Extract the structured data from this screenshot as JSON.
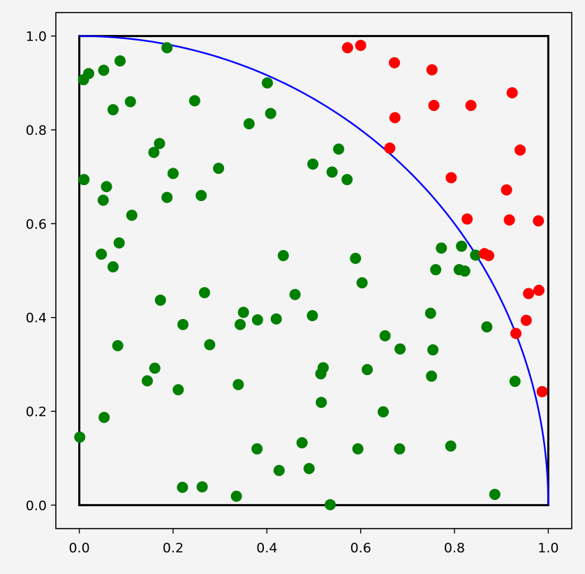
{
  "chart_data": {
    "type": "scatter",
    "title": "",
    "xlabel": "",
    "ylabel": "",
    "xlim": [
      -0.05,
      1.05
    ],
    "ylim": [
      -0.05,
      1.05
    ],
    "grid": false,
    "x_ticks": [
      "0.0",
      "0.2",
      "0.4",
      "0.6",
      "0.8",
      "1.0"
    ],
    "y_ticks": [
      "0.0",
      "0.2",
      "0.4",
      "0.6",
      "0.8",
      "1.0"
    ],
    "colors": {
      "inside": "#008000",
      "outside": "#ff0000",
      "arc": "#0000ff",
      "square": "#000000",
      "background": "#f4f4f4"
    },
    "reference_square": [
      [
        0,
        0
      ],
      [
        1,
        0
      ],
      [
        1,
        1
      ],
      [
        0,
        1
      ]
    ],
    "reference_arc": {
      "center": [
        0,
        0
      ],
      "radius": 1
    },
    "series": [
      {
        "points": [
          [
            0.187,
            0.975
          ],
          [
            0.087,
            0.947
          ],
          [
            0.02,
            0.92
          ],
          [
            0.052,
            0.927
          ],
          [
            0.009,
            0.907
          ],
          [
            0.109,
            0.86
          ],
          [
            0.072,
            0.843
          ],
          [
            0.246,
            0.862
          ],
          [
            0.401,
            0.9
          ],
          [
            0.408,
            0.835
          ],
          [
            0.362,
            0.813
          ],
          [
            0.171,
            0.771
          ],
          [
            0.159,
            0.752
          ],
          [
            0.2,
            0.707
          ],
          [
            0.297,
            0.718
          ],
          [
            0.498,
            0.727
          ],
          [
            0.553,
            0.759
          ],
          [
            0.539,
            0.71
          ],
          [
            0.571,
            0.694
          ],
          [
            0.01,
            0.694
          ],
          [
            0.058,
            0.679
          ],
          [
            0.051,
            0.65
          ],
          [
            0.187,
            0.656
          ],
          [
            0.26,
            0.66
          ],
          [
            0.112,
            0.618
          ],
          [
            0.085,
            0.559
          ],
          [
            0.047,
            0.535
          ],
          [
            0.072,
            0.508
          ],
          [
            0.435,
            0.532
          ],
          [
            0.589,
            0.526
          ],
          [
            0.772,
            0.548
          ],
          [
            0.815,
            0.552
          ],
          [
            0.845,
            0.533
          ],
          [
            0.76,
            0.502
          ],
          [
            0.81,
            0.502
          ],
          [
            0.822,
            0.499
          ],
          [
            0.603,
            0.474
          ],
          [
            0.267,
            0.453
          ],
          [
            0.173,
            0.437
          ],
          [
            0.46,
            0.449
          ],
          [
            0.35,
            0.411
          ],
          [
            0.343,
            0.385
          ],
          [
            0.38,
            0.395
          ],
          [
            0.42,
            0.397
          ],
          [
            0.497,
            0.404
          ],
          [
            0.221,
            0.385
          ],
          [
            0.749,
            0.409
          ],
          [
            0.869,
            0.38
          ],
          [
            0.652,
            0.361
          ],
          [
            0.082,
            0.34
          ],
          [
            0.278,
            0.342
          ],
          [
            0.684,
            0.333
          ],
          [
            0.754,
            0.331
          ],
          [
            0.161,
            0.292
          ],
          [
            0.52,
            0.293
          ],
          [
            0.515,
            0.28
          ],
          [
            0.614,
            0.289
          ],
          [
            0.145,
            0.265
          ],
          [
            0.751,
            0.275
          ],
          [
            0.929,
            0.264
          ],
          [
            0.211,
            0.246
          ],
          [
            0.339,
            0.257
          ],
          [
            0.516,
            0.219
          ],
          [
            0.648,
            0.199
          ],
          [
            0.053,
            0.187
          ],
          [
            0.001,
            0.145
          ],
          [
            0.475,
            0.133
          ],
          [
            0.379,
            0.12
          ],
          [
            0.594,
            0.12
          ],
          [
            0.683,
            0.12
          ],
          [
            0.792,
            0.126
          ],
          [
            0.426,
            0.074
          ],
          [
            0.49,
            0.078
          ],
          [
            0.22,
            0.038
          ],
          [
            0.262,
            0.039
          ],
          [
            0.335,
            0.019
          ],
          [
            0.535,
            0.001
          ],
          [
            0.886,
            0.023
          ]
        ]
      },
      {
        "points": [
          [
            0.572,
            0.975
          ],
          [
            0.6,
            0.98
          ],
          [
            0.672,
            0.943
          ],
          [
            0.752,
            0.928
          ],
          [
            0.923,
            0.879
          ],
          [
            0.756,
            0.852
          ],
          [
            0.835,
            0.852
          ],
          [
            0.673,
            0.826
          ],
          [
            0.662,
            0.761
          ],
          [
            0.94,
            0.757
          ],
          [
            0.793,
            0.698
          ],
          [
            0.911,
            0.672
          ],
          [
            0.827,
            0.61
          ],
          [
            0.917,
            0.608
          ],
          [
            0.979,
            0.606
          ],
          [
            0.864,
            0.536
          ],
          [
            0.873,
            0.532
          ],
          [
            0.98,
            0.458
          ],
          [
            0.958,
            0.451
          ],
          [
            0.953,
            0.394
          ],
          [
            0.931,
            0.366
          ],
          [
            0.987,
            0.242
          ]
        ]
      }
    ]
  }
}
